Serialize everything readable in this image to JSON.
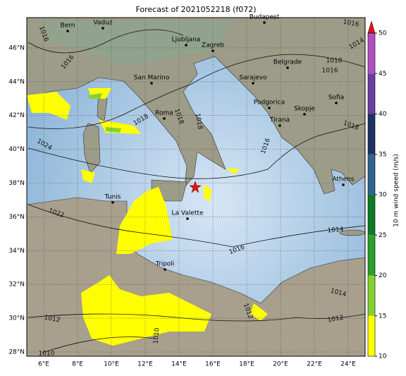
{
  "title": "Forecast of 2021052218 (f072)",
  "x_ticks": [
    {
      "value": 6,
      "label": "6°E"
    },
    {
      "value": 8,
      "label": "8°E"
    },
    {
      "value": 10,
      "label": "10°E"
    },
    {
      "value": 12,
      "label": "12°E"
    },
    {
      "value": 14,
      "label": "14°E"
    },
    {
      "value": 16,
      "label": "16°E"
    },
    {
      "value": 18,
      "label": "18°E"
    },
    {
      "value": 20,
      "label": "20°E"
    },
    {
      "value": 22,
      "label": "22°E"
    },
    {
      "value": 24,
      "label": "24°E"
    }
  ],
  "y_ticks": [
    {
      "value": 28,
      "label": "28°N"
    },
    {
      "value": 30,
      "label": "30°N"
    },
    {
      "value": 32,
      "label": "32°N"
    },
    {
      "value": 34,
      "label": "34°N"
    },
    {
      "value": 36,
      "label": "36°N"
    },
    {
      "value": 38,
      "label": "38°N"
    },
    {
      "value": 40,
      "label": "40°N"
    },
    {
      "value": 42,
      "label": "42°N"
    },
    {
      "value": 44,
      "label": "44°N"
    },
    {
      "value": 46,
      "label": "46°N"
    }
  ],
  "cities": [
    "Bern",
    "Vaduz",
    "Budapest",
    "Ljubljana",
    "Zagreb",
    "San Marino",
    "Belgrade",
    "Sarajevo",
    "Roma",
    "Podgorica",
    "Skopje",
    "Sofia",
    "Tirana",
    "Athens",
    "Tunis",
    "La Valette",
    "Tripoli"
  ],
  "isobar_labels": [
    "1016",
    "1016",
    "1016",
    "1014",
    "1018",
    "1016",
    "1018",
    "1018",
    "1018",
    "1016",
    "1024",
    "1018",
    "1022",
    "1016",
    "1014",
    "1014",
    "1012",
    "1012",
    "1012",
    "1010",
    "1010"
  ],
  "colorbar": {
    "label": "10 m wind speed (m/s)",
    "range": [
      10,
      50
    ],
    "ticks": [
      10,
      15,
      20,
      25,
      30,
      35,
      40,
      45,
      50
    ],
    "colors": [
      "#ffff00",
      "#86d12f",
      "#2ca02c",
      "#117a2a",
      "#2f6390",
      "#1d3462",
      "#6a3da0",
      "#b050c0"
    ],
    "over_color": "#e0150f"
  }
}
